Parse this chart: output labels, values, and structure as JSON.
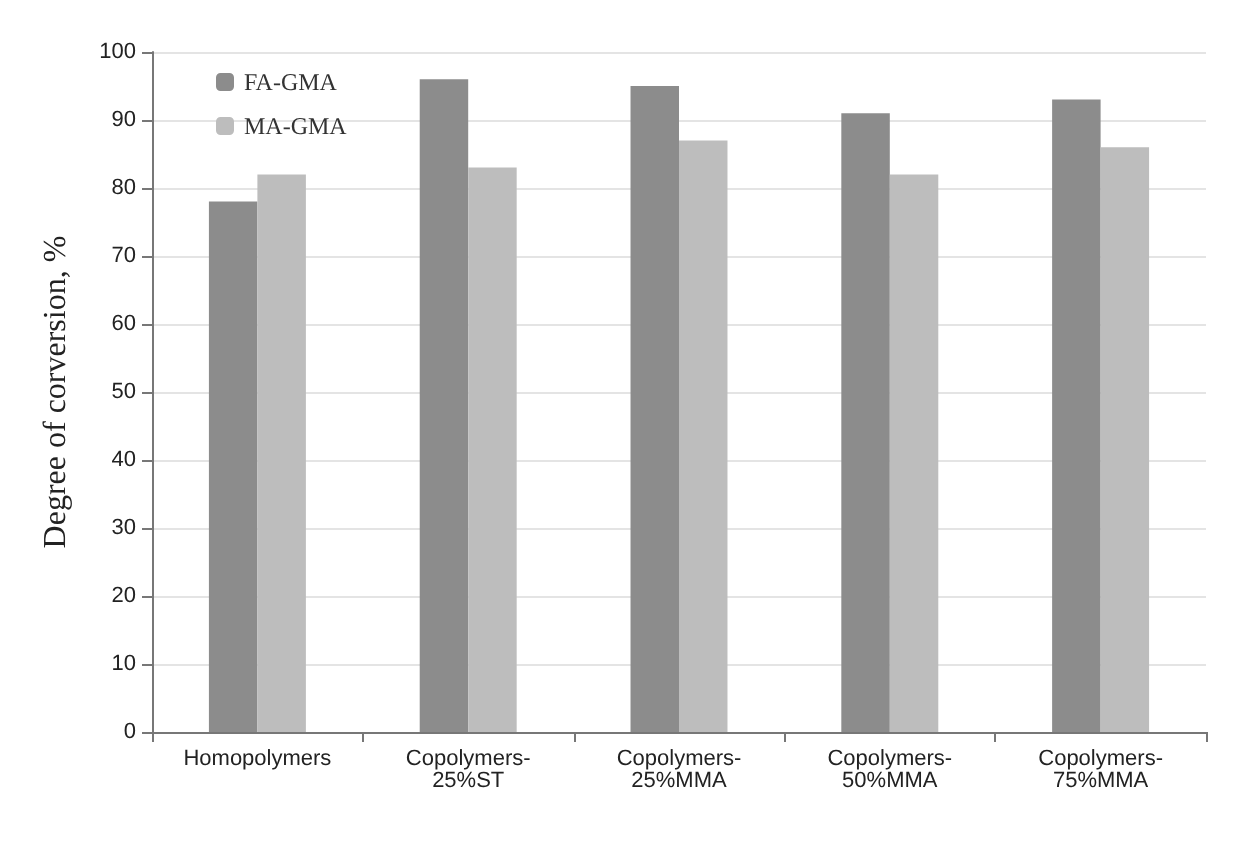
{
  "chart_data": {
    "type": "bar",
    "ylabel": "Degree of corversion, %",
    "categories": [
      "Homopolymers",
      "Copolymers-25%ST",
      "Copolymers-25%MMA",
      "Copolymers-50%MMA",
      "Copolymers-75%MMA"
    ],
    "series": [
      {
        "name": "FA-GMA",
        "color": "#8c8c8c",
        "values": [
          78,
          96,
          95,
          91,
          93
        ]
      },
      {
        "name": "MA-GMA",
        "color": "#bdbdbd",
        "values": [
          82,
          83,
          87,
          82,
          86
        ]
      }
    ],
    "ylim": [
      0,
      100
    ],
    "yticks": [
      0,
      10,
      20,
      30,
      40,
      50,
      60,
      70,
      80,
      90,
      100
    ],
    "grid": "y",
    "legend": "top left"
  }
}
